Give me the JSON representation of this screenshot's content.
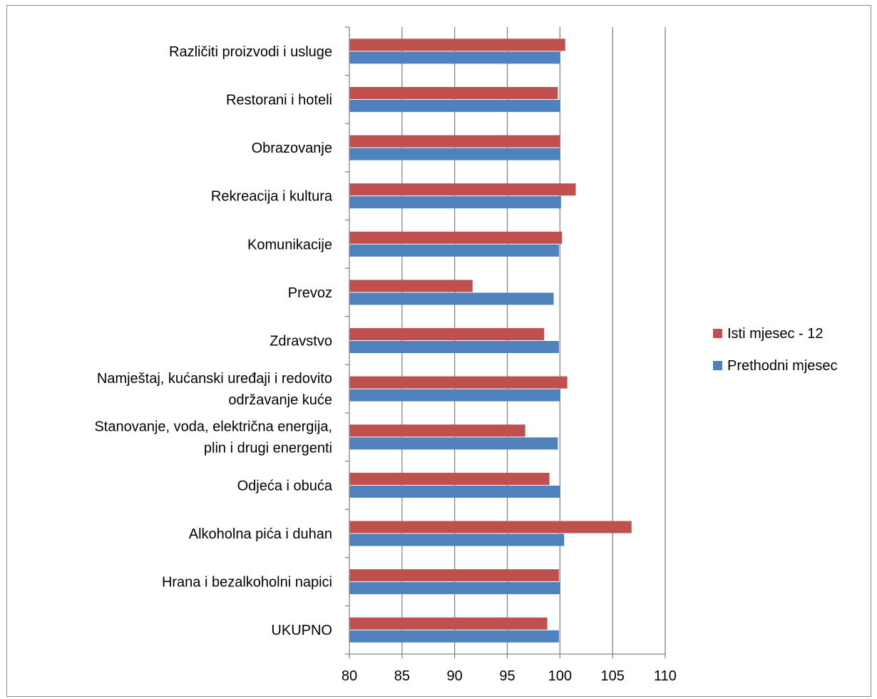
{
  "chart_data": {
    "type": "bar",
    "orientation": "horizontal",
    "categories": [
      "UKUPNO",
      "Hrana i bezalkoholni napici",
      "Alkoholna pića i duhan",
      "Odjeća i obuća",
      "Stanovanje, voda, električna energija, plin i drugi energenti",
      "Namještaj, kućanski uređaji i redovito održavanje kuće",
      "Zdravstvo",
      "Prevoz",
      "Komunikacije",
      "Rekreacija i kultura",
      "Obrazovanje",
      "Restorani i hoteli",
      "Različiti proizvodi i usluge"
    ],
    "category_lines": [
      [
        "UKUPNO"
      ],
      [
        "Hrana i bezalkoholni napici"
      ],
      [
        "Alkoholna pića i duhan"
      ],
      [
        "Odjeća i obuća"
      ],
      [
        "Stanovanje, voda, električna energija,",
        "plin i drugi energenti"
      ],
      [
        "Namještaj, kućanski uređaji i redovito",
        "održavanje kuće"
      ],
      [
        "Zdravstvo"
      ],
      [
        "Prevoz"
      ],
      [
        "Komunikacije"
      ],
      [
        "Rekreacija i kultura"
      ],
      [
        "Obrazovanje"
      ],
      [
        "Restorani i hoteli"
      ],
      [
        "Različiti proizvodi i usluge"
      ]
    ],
    "series": [
      {
        "name": "Prethodni mjesec",
        "color": "#4f81bd",
        "values": [
          99.9,
          100.0,
          100.4,
          100.0,
          99.8,
          100.0,
          99.9,
          99.4,
          99.9,
          100.1,
          100.0,
          100.0,
          100.0
        ]
      },
      {
        "name": "Isti mjesec - 12",
        "color": "#c0504d",
        "values": [
          98.8,
          99.9,
          106.8,
          99.0,
          96.7,
          100.7,
          98.5,
          91.7,
          100.2,
          101.5,
          100.0,
          99.8,
          100.5
        ]
      }
    ],
    "xlim": [
      80,
      110
    ],
    "xticks": [
      80,
      85,
      90,
      95,
      100,
      105,
      110
    ],
    "grid": true,
    "legend": {
      "placement": "right",
      "entries": [
        {
          "name": "Isti mjesec - 12",
          "color": "#c0504d"
        },
        {
          "name": "Prethodni mjesec",
          "color": "#4f81bd"
        }
      ]
    }
  }
}
